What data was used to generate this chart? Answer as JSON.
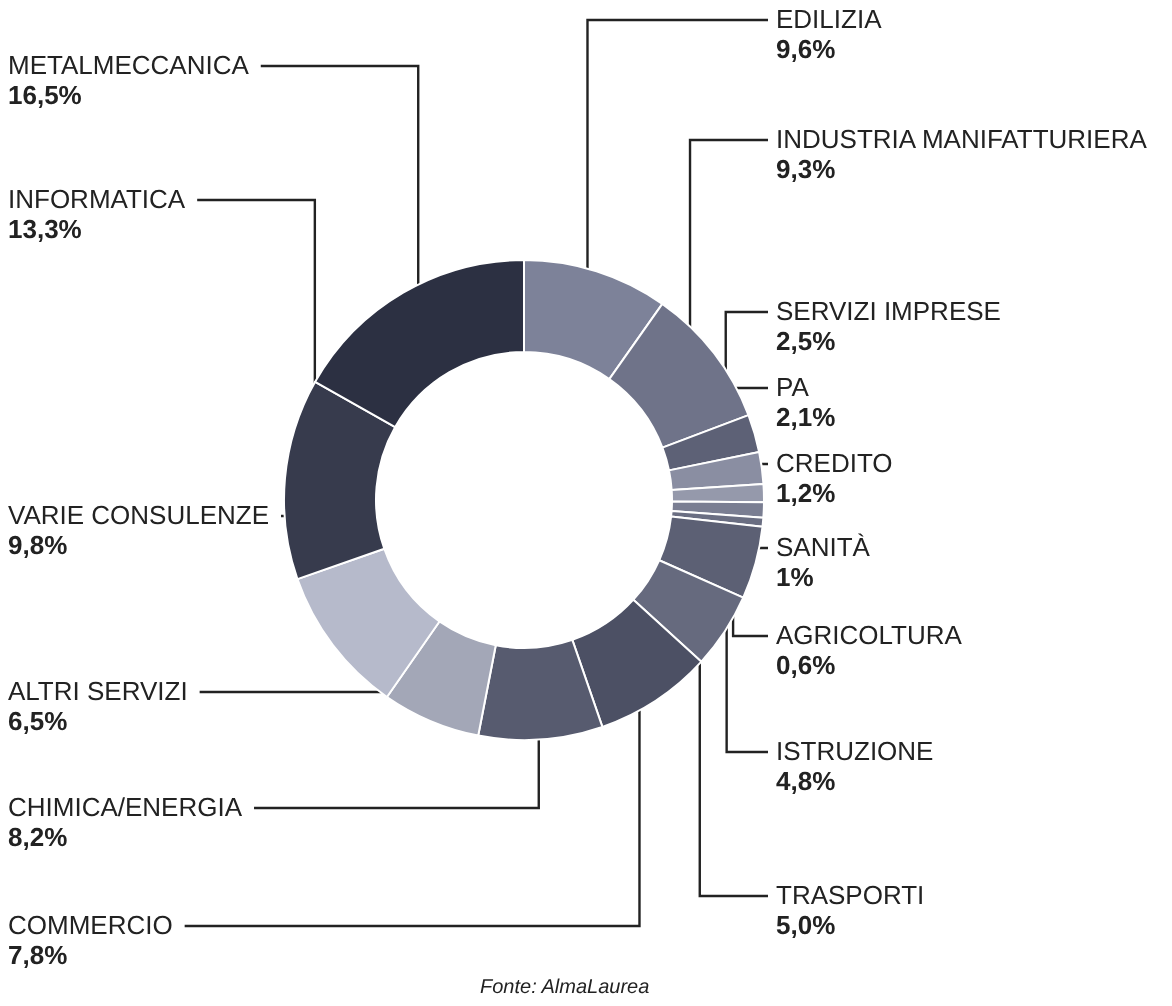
{
  "chart_data": {
    "type": "donut",
    "categories": [
      "EDILIZIA",
      "INDUSTRIA MANIFATTURIERA",
      "SERVIZI IMPRESE",
      "PA",
      "CREDITO",
      "SANITÀ",
      "AGRICOLTURA",
      "ISTRUZIONE",
      "TRASPORTI",
      "COMMERCIO",
      "CHIMICA/ENERGIA",
      "ALTRI SERVIZI",
      "VARIE CONSULENZE",
      "INFORMATICA",
      "METALMECCANICA"
    ],
    "values": [
      9.6,
      9.3,
      2.5,
      2.1,
      1.2,
      1,
      0.6,
      4.8,
      5.0,
      7.8,
      8.2,
      6.5,
      9.8,
      13.3,
      16.5
    ],
    "value_labels": [
      "9,6%",
      "9,3%",
      "2,5%",
      "2,1%",
      "1,2%",
      "1%",
      "0,6%",
      "4,8%",
      "5,0%",
      "7,8%",
      "8,2%",
      "6,5%",
      "9,8%",
      "13,3%",
      "16,5%"
    ],
    "colors": [
      "#7d8299",
      "#6f7389",
      "#5d6176",
      "#8a8ea2",
      "#9599ab",
      "#7a7e92",
      "#6a6e82",
      "#5c6074",
      "#666a7e",
      "#4c5064",
      "#575b6f",
      "#a3a7b7",
      "#b6bacb",
      "#373b4d",
      "#2c3042"
    ],
    "annotations": [
      "Fonte: AlmaLaurea"
    ],
    "legend": false
  }
}
